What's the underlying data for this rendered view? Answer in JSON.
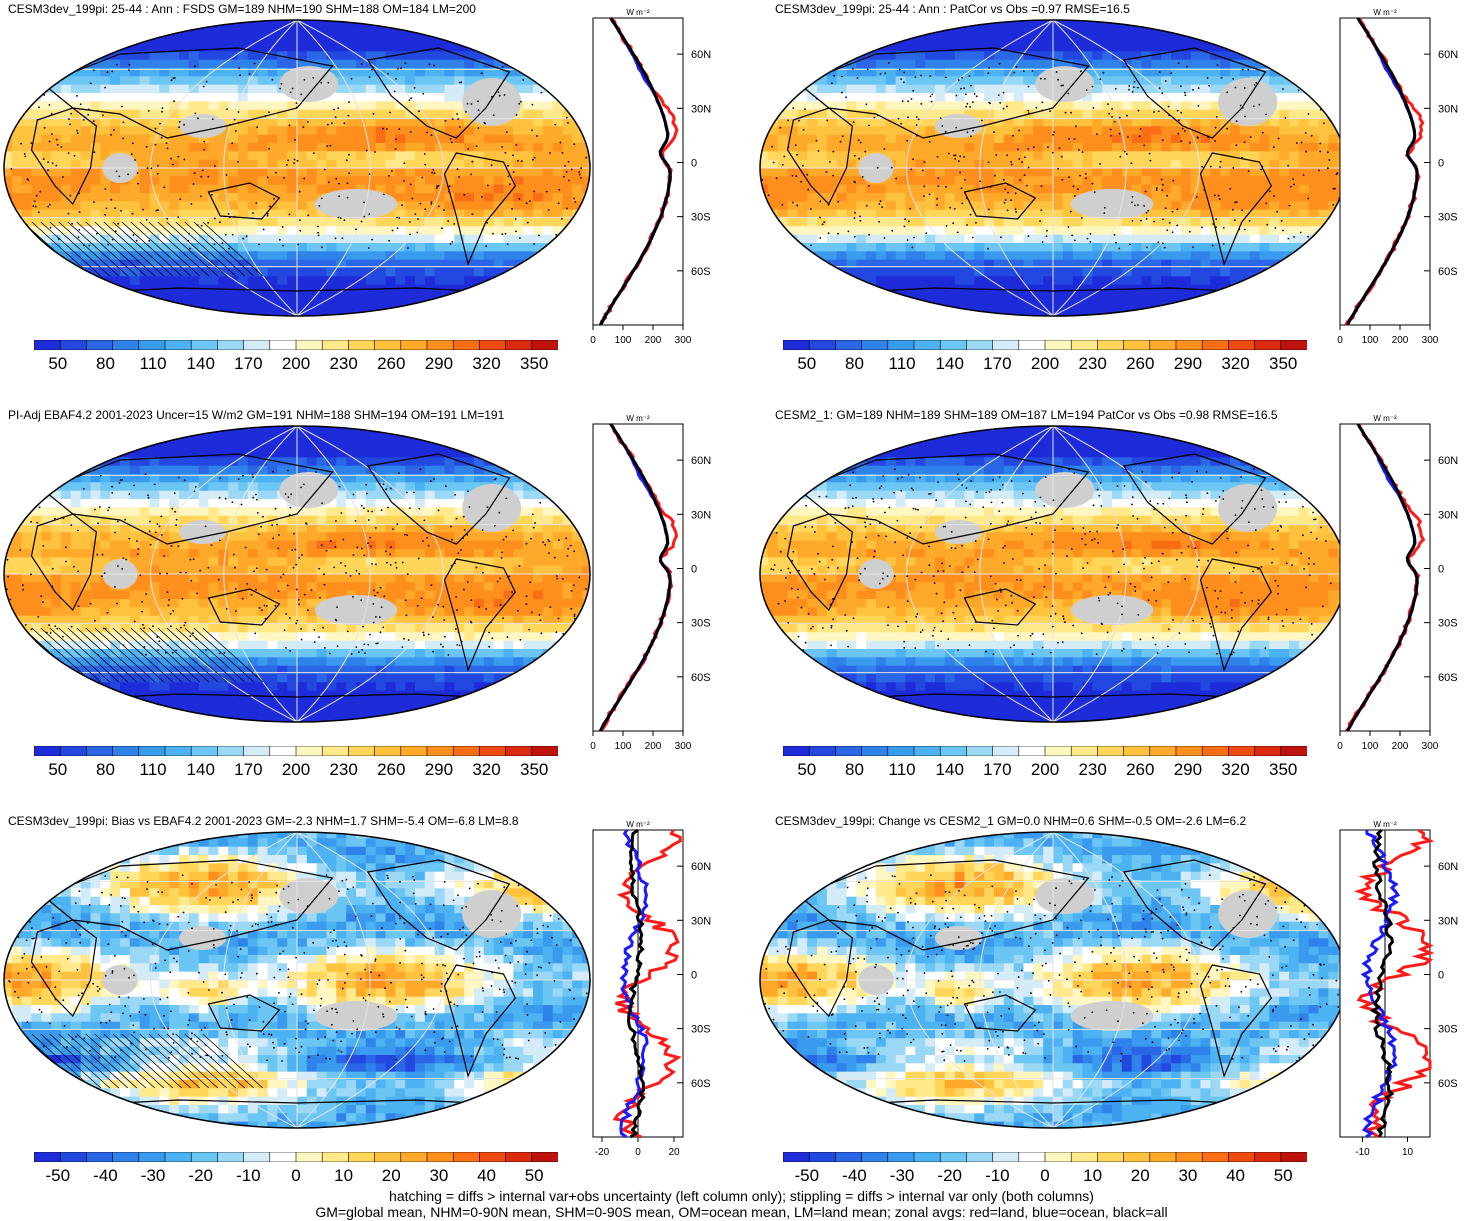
{
  "panels": [
    {
      "id": "p1",
      "title": "CESM3dev_199pi: 25-44 : Ann : FSDS GM=189 NHM=190 SHM=188 OM=184 LM=200",
      "colorbar_ticks": [
        "50",
        "80",
        "110",
        "140",
        "170",
        "200",
        "230",
        "260",
        "290",
        "320",
        "350"
      ],
      "zonal_xticks": [
        "0",
        "100",
        "200",
        "300"
      ],
      "zonal_yticks": [
        "60N",
        "30N",
        "0",
        "30S",
        "60S"
      ],
      "zonal_units": "W m⁻²"
    },
    {
      "id": "p2",
      "title": "CESM3dev_199pi: 25-44 : Ann : PatCor vs Obs =0.97 RMSE=16.5",
      "colorbar_ticks": [
        "50",
        "80",
        "110",
        "140",
        "170",
        "200",
        "230",
        "260",
        "290",
        "320",
        "350"
      ],
      "zonal_xticks": [
        "0",
        "100",
        "200",
        "300"
      ],
      "zonal_yticks": [
        "60N",
        "30N",
        "0",
        "30S",
        "60S"
      ],
      "zonal_units": "W m⁻²"
    },
    {
      "id": "p3",
      "title": "PI-Adj EBAF4.2 2001-2023 Uncer=15 W/m2 GM=191 NHM=188 SHM=194 OM=191 LM=191",
      "colorbar_ticks": [
        "50",
        "80",
        "110",
        "140",
        "170",
        "200",
        "230",
        "260",
        "290",
        "320",
        "350"
      ],
      "zonal_xticks": [
        "0",
        "100",
        "200",
        "300"
      ],
      "zonal_yticks": [
        "60N",
        "30N",
        "0",
        "30S",
        "60S"
      ],
      "zonal_units": "W m⁻²"
    },
    {
      "id": "p4",
      "title": "CESM2_1: GM=189 NHM=189 SHM=189 OM=187 LM=194 PatCor vs Obs =0.98 RMSE=16.5",
      "colorbar_ticks": [
        "50",
        "80",
        "110",
        "140",
        "170",
        "200",
        "230",
        "260",
        "290",
        "320",
        "350"
      ],
      "zonal_xticks": [
        "0",
        "100",
        "200",
        "300"
      ],
      "zonal_yticks": [
        "60N",
        "30N",
        "0",
        "30S",
        "60S"
      ],
      "zonal_units": "W m⁻²"
    },
    {
      "id": "p5",
      "title": "CESM3dev_199pi: Bias vs EBAF4.2 2001-2023 GM=-2.3 NHM=1.7 SHM=-5.4 OM=-6.8 LM=8.8",
      "colorbar_ticks": [
        "-50",
        "-40",
        "-30",
        "-20",
        "-10",
        "0",
        "10",
        "20",
        "30",
        "40",
        "50"
      ],
      "zonal_xticks": [
        "-20",
        "0",
        "20"
      ],
      "zonal_yticks": [
        "60N",
        "30N",
        "0",
        "30S",
        "60S"
      ],
      "zonal_units": "W m⁻²"
    },
    {
      "id": "p6",
      "title": "CESM3dev_199pi: Change vs CESM2_1 GM=0.0 NHM=0.6 SHM=-0.5 OM=-2.6 LM=6.2",
      "colorbar_ticks": [
        "-50",
        "-40",
        "-30",
        "-20",
        "-10",
        "0",
        "10",
        "20",
        "30",
        "40",
        "50"
      ],
      "zonal_xticks": [
        "-10",
        "10"
      ],
      "zonal_yticks": [
        "60N",
        "30N",
        "0",
        "30S",
        "60S"
      ],
      "zonal_units": "W m⁻²"
    }
  ],
  "colors": {
    "palette": [
      "#1d2bd9",
      "#2248e0",
      "#2a66e6",
      "#2f82ea",
      "#3a9bee",
      "#4cb2f2",
      "#6cc6f3",
      "#9ad8f5",
      "#d4ecf8",
      "#ffffff",
      "#fff7c2",
      "#ffe98a",
      "#ffd65a",
      "#ffc23e",
      "#ffa92a",
      "#ff8f1d",
      "#f96e14",
      "#ee4c10",
      "#dc2a0e",
      "#c0120c"
    ],
    "land_mask": "#cfcfcf",
    "zonal_land": "#ff1a1a",
    "zonal_ocean": "#1a1aff",
    "zonal_all": "#000000"
  },
  "chart_data": [
    {
      "type": "heatmap",
      "panel": "p1",
      "colorbar_range": [
        50,
        350
      ],
      "zonal_xlim": [
        0,
        300
      ]
    },
    {
      "type": "heatmap",
      "panel": "p2",
      "colorbar_range": [
        50,
        350
      ],
      "zonal_xlim": [
        0,
        300
      ]
    },
    {
      "type": "heatmap",
      "panel": "p3",
      "colorbar_range": [
        50,
        350
      ],
      "zonal_xlim": [
        0,
        300
      ]
    },
    {
      "type": "heatmap",
      "panel": "p4",
      "colorbar_range": [
        50,
        350
      ],
      "zonal_xlim": [
        0,
        300
      ]
    },
    {
      "type": "heatmap",
      "panel": "p5",
      "colorbar_range": [
        -50,
        50
      ],
      "zonal_xlim": [
        -25,
        25
      ]
    },
    {
      "type": "heatmap",
      "panel": "p6",
      "colorbar_range": [
        -50,
        50
      ],
      "zonal_xlim": [
        -20,
        20
      ]
    }
  ],
  "footer": {
    "line1": "hatching = diffs > internal var+obs uncertainty (left column only); stippling = diffs > internal var only (both columns)",
    "line2": "GM=global mean, NHM=0-90N mean, SHM=0-90S mean, OM=ocean mean, LM=land mean; zonal avgs: red=land, blue=ocean, black=all"
  }
}
